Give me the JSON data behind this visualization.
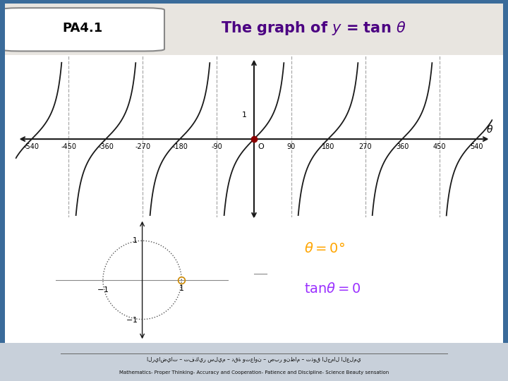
{
  "pa_label": "PA4.1",
  "bg_outer": "#3a6b9a",
  "bg_inner": "#f0ede8",
  "bg_header": "#e8e5e0",
  "bg_bottom": "#c8d0da",
  "x_ticks": [
    -540,
    -450,
    -360,
    -270,
    -180,
    -90,
    0,
    90,
    180,
    270,
    360,
    450,
    540
  ],
  "graph_color": "#1a1a1a",
  "asymptote_color": "#aaaaaa",
  "asymptotes": [
    -450,
    -270,
    -90,
    90,
    270,
    450
  ],
  "dot_color": "#8B0000",
  "circle_color": "#555555",
  "theta_color": "#FFA500",
  "tan_color": "#9B30FF",
  "axis_arrow_color": "#1a1a1a",
  "footer_text_arabic": "الرياضيات – تفكير سليم – دقة وتعاون – صبر ونظام – تذوق الجمال العلمي",
  "footer_text_en": "Mathematics- Proper Thinking- Accuracy and Cooperation- Patience and Discipline- Science Beauty sensation",
  "title_color": "#4B0082",
  "xlim": [
    -580,
    580
  ],
  "ylim_tan": [
    -3.5,
    3.5
  ],
  "tan_clip": 3.2
}
